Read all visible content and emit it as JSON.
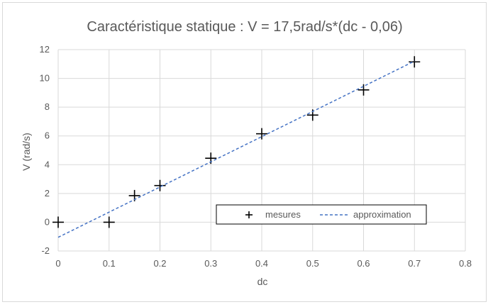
{
  "chart_data": {
    "type": "scatter",
    "title": "Caractéristique statique : V = 17,5rad/s*(dc - 0,06)",
    "xlabel": "dc",
    "ylabel": "V (rad/s)",
    "xlim": [
      0,
      0.8
    ],
    "ylim": [
      -2,
      12
    ],
    "x_ticks": [
      "0",
      "0.1",
      "0.2",
      "0.3",
      "0.4",
      "0.5",
      "0.6",
      "0.7",
      "0.8"
    ],
    "y_ticks": [
      "-2",
      "0",
      "2",
      "4",
      "6",
      "8",
      "10",
      "12"
    ],
    "grid": true,
    "legend_position": "bottom-right",
    "series": [
      {
        "name": "mesures",
        "type": "scatter",
        "marker": "plus",
        "color": "#000000",
        "x": [
          0,
          0.1,
          0.15,
          0.2,
          0.3,
          0.4,
          0.5,
          0.6,
          0.7
        ],
        "y": [
          0,
          0,
          1.85,
          2.55,
          4.45,
          6.15,
          7.45,
          9.2,
          11.15
        ]
      },
      {
        "name": "approximation",
        "type": "line",
        "style": "dashed",
        "color": "#4472c4",
        "x": [
          0,
          0.7
        ],
        "y": [
          -1.05,
          11.2
        ]
      }
    ]
  }
}
